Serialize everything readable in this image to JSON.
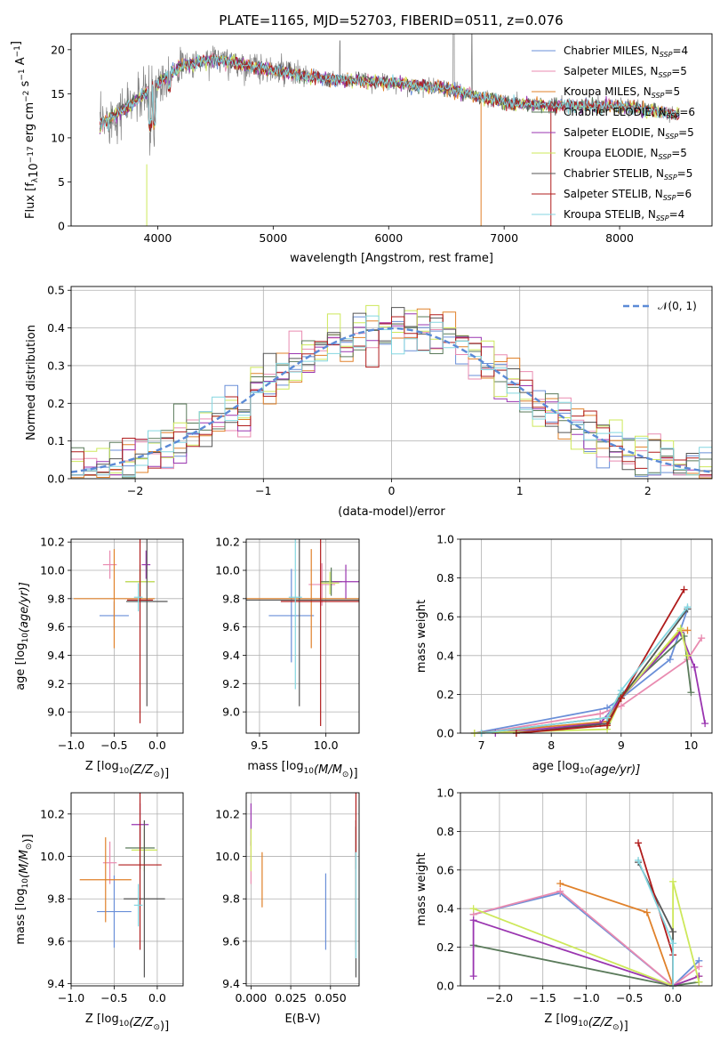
{
  "figure_title": "PLATE=1165, MJD=52703, FIBERID=0511, z=0.076",
  "colors": {
    "Chabrier MILES": "#6a8fd8",
    "Salpeter MILES": "#e98bb0",
    "Kroupa MILES": "#e0812a",
    "Chabrier ELODIE": "#5a7a5a",
    "Salpeter ELODIE": "#9a35b0",
    "Kroupa ELODIE": "#cde85a",
    "Chabrier STELIB": "#555555",
    "Salpeter STELIB": "#b01c1c",
    "Kroupa STELIB": "#84d6e0",
    "data": "#808080",
    "gaussian": "#5b8ad6",
    "grid": "#b0b0b0"
  },
  "chart_data": [
    {
      "id": "spectrum",
      "type": "line",
      "xlabel": "wavelength [Angstrom, rest frame]",
      "ylabel": "Flux [f",
      "ylabel_parts": {
        "pre": "Flux [f",
        "sub": "λ",
        "mid": "10",
        "sup1": "−17",
        "mid2": " erg cm",
        "sup2": "−2",
        "mid3": " s",
        "sup3": "−1",
        "end": " A",
        "sup4": "−1",
        "close": "]"
      },
      "xlim": [
        3250,
        8800
      ],
      "ylim": [
        0,
        21.8
      ],
      "xticks": [
        "4000",
        "5000",
        "6000",
        "7000",
        "8000"
      ],
      "yticks": [
        "0",
        "5",
        "10",
        "15",
        "20"
      ],
      "legend_position": "top-right",
      "legend": [
        {
          "name": "Chabrier MILES",
          "nssp": "4"
        },
        {
          "name": "Salpeter MILES",
          "nssp": "5"
        },
        {
          "name": "Kroupa MILES",
          "nssp": "5"
        },
        {
          "name": "Chabrier ELODIE",
          "nssp": "6"
        },
        {
          "name": "Salpeter ELODIE",
          "nssp": "5"
        },
        {
          "name": "Kroupa ELODIE",
          "nssp": "5"
        },
        {
          "name": "Chabrier STELIB",
          "nssp": "5"
        },
        {
          "name": "Salpeter STELIB",
          "nssp": "6"
        },
        {
          "name": "Kroupa STELIB",
          "nssp": "4"
        }
      ],
      "legend_label_suffix": ", N",
      "legend_sub": "SSP",
      "continuum": [
        [
          3500,
          11.5
        ],
        [
          3700,
          13.2
        ],
        [
          3900,
          15.0
        ],
        [
          4000,
          16.2
        ],
        [
          4200,
          18.2
        ],
        [
          4500,
          19.0
        ],
        [
          5000,
          17.6
        ],
        [
          5500,
          16.6
        ],
        [
          6000,
          16.3
        ],
        [
          6500,
          15.6
        ],
        [
          7000,
          14.0
        ],
        [
          7500,
          13.6
        ],
        [
          8000,
          13.6
        ],
        [
          8500,
          12.7
        ]
      ]
    },
    {
      "id": "residuals",
      "type": "histogram",
      "xlabel": "(data-model)/error",
      "ylabel": "Normed distribution",
      "xlim": [
        -2.5,
        2.5
      ],
      "ylim": [
        0,
        0.51
      ],
      "xticks": [
        "−2",
        "−1",
        "0",
        "1",
        "2"
      ],
      "yticks": [
        "0.0",
        "0.1",
        "0.2",
        "0.3",
        "0.4",
        "0.5"
      ],
      "legend_position": "top-right",
      "legend": "𝒩(0, 1)",
      "bin_width": 0.1
    },
    {
      "id": "age-vs-Z",
      "type": "scatter",
      "xlabel_pre": "Z [log",
      "xlabel_sub": "10",
      "xlabel_post": "(Z/Z",
      "xlabel_sun": "⊙",
      "xlabel_close": ")]",
      "ylabel_pre": "age  [log",
      "ylabel_sub": "10",
      "ylabel_post": "(age/yr)]",
      "xlim": [
        -1.0,
        0.3
      ],
      "ylim": [
        8.85,
        10.22
      ],
      "xticks": [
        "−1.0",
        "−0.5",
        "0.0"
      ],
      "yticks": [
        "9.0",
        "9.2",
        "9.4",
        "9.6",
        "9.8",
        "10.0",
        "10.2"
      ],
      "points": [
        {
          "series": "Chabrier MILES",
          "x": -0.5,
          "xerr": 0.17,
          "y": 9.68,
          "yerr": 0.1
        },
        {
          "series": "Salpeter MILES",
          "x": -0.55,
          "xerr": 0.08,
          "y": 10.04,
          "yerr": 0.1
        },
        {
          "series": "Kroupa MILES",
          "x": -0.5,
          "xerr": 0.47,
          "y": 9.8,
          "yerr": 0.35
        },
        {
          "series": "Chabrier ELODIE",
          "x": -0.2,
          "xerr": 0.17,
          "y": 9.92,
          "yerr": 0.12
        },
        {
          "series": "Salpeter ELODIE",
          "x": -0.13,
          "xerr": 0.05,
          "y": 10.04,
          "yerr": 0.1
        },
        {
          "series": "Kroupa ELODIE",
          "x": -0.2,
          "xerr": 0.17,
          "y": 9.92,
          "yerr": 0.1
        },
        {
          "series": "Chabrier STELIB",
          "x": -0.12,
          "xerr": 0.24,
          "y": 9.78,
          "yerr": 0.74
        },
        {
          "series": "Salpeter STELIB",
          "x": -0.2,
          "xerr": 0.15,
          "y": 9.79,
          "yerr": 0.87
        },
        {
          "series": "Kroupa STELIB",
          "x": -0.22,
          "xerr": 0.05,
          "y": 9.81,
          "yerr": 0.1
        }
      ]
    },
    {
      "id": "age-vs-mass",
      "type": "scatter",
      "xlabel_pre": "mass [log",
      "xlabel_sub": "10",
      "xlabel_post": "(M/M",
      "xlabel_sun": "⊙",
      "xlabel_close": ")]",
      "xlim": [
        9.4,
        10.25
      ],
      "ylim": [
        8.85,
        10.22
      ],
      "xticks": [
        "9.5",
        "10.0"
      ],
      "yticks": [
        "9.0",
        "9.2",
        "9.4",
        "9.6",
        "9.8",
        "10.0",
        "10.2"
      ],
      "points": [
        {
          "series": "Chabrier MILES",
          "x": 9.74,
          "xerr": 0.17,
          "y": 9.68,
          "yerr": 0.33
        },
        {
          "series": "Salpeter MILES",
          "x": 9.97,
          "xerr": 0.1,
          "y": 9.9,
          "yerr": 0.15
        },
        {
          "series": "Kroupa MILES",
          "x": 9.89,
          "xerr": 0.5,
          "y": 9.8,
          "yerr": 0.35
        },
        {
          "series": "Chabrier ELODIE",
          "x": 10.04,
          "xerr": 0.08,
          "y": 9.92,
          "yerr": 0.1
        },
        {
          "series": "Salpeter ELODIE",
          "x": 10.15,
          "xerr": 0.1,
          "y": 9.92,
          "yerr": 0.12
        },
        {
          "series": "Kroupa ELODIE",
          "x": 10.03,
          "xerr": 0.07,
          "y": 9.91,
          "yerr": 0.08
        },
        {
          "series": "Chabrier STELIB",
          "x": 9.8,
          "xerr": 0.5,
          "y": 9.79,
          "yerr": 0.75
        },
        {
          "series": "Salpeter STELIB",
          "x": 9.96,
          "xerr": 0.3,
          "y": 9.78,
          "yerr": 0.88
        },
        {
          "series": "Kroupa STELIB",
          "x": 9.77,
          "xerr": 0.05,
          "y": 9.81,
          "yerr": 0.65
        }
      ]
    },
    {
      "id": "mass-weight-vs-age",
      "type": "line",
      "xlabel_pre": "age  [log",
      "xlabel_sub": "10",
      "xlabel_post": "(age/yr)]",
      "ylabel": "mass weight",
      "xlim": [
        6.7,
        10.3
      ],
      "ylim": [
        0,
        1.0
      ],
      "xticks": [
        "7",
        "8",
        "9",
        "10"
      ],
      "yticks": [
        "0.0",
        "0.2",
        "0.4",
        "0.6",
        "0.8",
        "1.0"
      ],
      "series": [
        {
          "name": "Chabrier MILES",
          "points": [
            [
              6.9,
              0.0
            ],
            [
              8.8,
              0.13
            ],
            [
              9.0,
              0.18
            ],
            [
              9.7,
              0.38
            ],
            [
              9.95,
              0.64
            ]
          ]
        },
        {
          "name": "Salpeter MILES",
          "points": [
            [
              7.0,
              0.0
            ],
            [
              8.7,
              0.1
            ],
            [
              9.0,
              0.14
            ],
            [
              9.95,
              0.38
            ],
            [
              10.15,
              0.49
            ]
          ]
        },
        {
          "name": "Kroupa MILES",
          "points": [
            [
              6.9,
              0.0
            ],
            [
              8.8,
              0.06
            ],
            [
              9.0,
              0.18
            ],
            [
              9.85,
              0.53
            ],
            [
              9.95,
              0.53
            ]
          ]
        },
        {
          "name": "Chabrier ELODIE",
          "points": [
            [
              7.0,
              0.0
            ],
            [
              8.8,
              0.08
            ],
            [
              9.0,
              0.2
            ],
            [
              9.9,
              0.5
            ],
            [
              10.0,
              0.21
            ]
          ]
        },
        {
          "name": "Salpeter ELODIE",
          "points": [
            [
              7.2,
              0.0
            ],
            [
              8.7,
              0.05
            ],
            [
              9.0,
              0.18
            ],
            [
              9.85,
              0.52
            ],
            [
              10.05,
              0.34
            ],
            [
              10.2,
              0.05
            ]
          ]
        },
        {
          "name": "Kroupa ELODIE",
          "points": [
            [
              6.9,
              0.0
            ],
            [
              8.8,
              0.02
            ],
            [
              9.0,
              0.18
            ],
            [
              9.85,
              0.54
            ],
            [
              9.95,
              0.4
            ]
          ]
        },
        {
          "name": "Chabrier STELIB",
          "points": [
            [
              7.5,
              0.0
            ],
            [
              8.8,
              0.05
            ],
            [
              9.0,
              0.18
            ],
            [
              9.95,
              0.64
            ]
          ]
        },
        {
          "name": "Salpeter STELIB",
          "points": [
            [
              7.5,
              0.0
            ],
            [
              8.8,
              0.04
            ],
            [
              9.0,
              0.18
            ],
            [
              9.9,
              0.74
            ]
          ]
        },
        {
          "name": "Kroupa STELIB",
          "points": [
            [
              7.0,
              0.0
            ],
            [
              8.8,
              0.08
            ],
            [
              9.0,
              0.22
            ],
            [
              9.95,
              0.65
            ]
          ]
        }
      ]
    },
    {
      "id": "mass-vs-Z",
      "type": "scatter",
      "xlabel_pre": "Z [log",
      "xlabel_sub": "10",
      "xlabel_post": "(Z/Z",
      "xlabel_sun": "⊙",
      "xlabel_close": ")]",
      "ylabel_pre": "mass [log",
      "ylabel_sub": "10",
      "ylabel_post": "(M/M",
      "ylabel_sun": "⊙",
      "ylabel_close": ")]",
      "xlim": [
        -1.0,
        0.3
      ],
      "ylim": [
        9.39,
        10.3
      ],
      "xticks": [
        "−1.0",
        "−0.5",
        "0.0"
      ],
      "yticks": [
        "9.4",
        "9.6",
        "9.8",
        "10.0",
        "10.2"
      ],
      "points": [
        {
          "series": "Chabrier MILES",
          "x": -0.5,
          "xerr": 0.2,
          "y": 9.74,
          "yerr": 0.17
        },
        {
          "series": "Salpeter MILES",
          "x": -0.55,
          "xerr": 0.08,
          "y": 9.97,
          "yerr": 0.1
        },
        {
          "series": "Kroupa MILES",
          "x": -0.6,
          "xerr": 0.3,
          "y": 9.89,
          "yerr": 0.2
        },
        {
          "series": "Chabrier ELODIE",
          "x": -0.2,
          "xerr": 0.17,
          "y": 10.04,
          "yerr": 0.1
        },
        {
          "series": "Salpeter ELODIE",
          "x": -0.2,
          "xerr": 0.1,
          "y": 10.15,
          "yerr": 0.1
        },
        {
          "series": "Kroupa ELODIE",
          "x": -0.15,
          "xerr": 0.15,
          "y": 10.03,
          "yerr": 0.1
        },
        {
          "series": "Chabrier STELIB",
          "x": -0.15,
          "xerr": 0.24,
          "y": 9.8,
          "yerr": 0.37
        },
        {
          "series": "Salpeter STELIB",
          "x": -0.2,
          "xerr": 0.25,
          "y": 9.96,
          "yerr": 0.4
        },
        {
          "series": "Kroupa STELIB",
          "x": -0.22,
          "xerr": 0.05,
          "y": 9.77,
          "yerr": 0.1
        }
      ]
    },
    {
      "id": "mass-vs-EBV",
      "type": "scatter",
      "xlabel": "E(B-V)",
      "xlim": [
        -0.003,
        0.068
      ],
      "ylim": [
        9.39,
        10.3
      ],
      "xticks": [
        "0.000",
        "0.025",
        "0.050"
      ],
      "yticks": [
        "9.4",
        "9.6",
        "9.8",
        "10.0",
        "10.2"
      ],
      "points": [
        {
          "series": "Chabrier MILES",
          "x": 0.047,
          "y": 9.74,
          "yerr": 0.18
        },
        {
          "series": "Salpeter MILES",
          "x": 0.0,
          "y": 9.97,
          "yerr": 0.1
        },
        {
          "series": "Kroupa MILES",
          "x": 0.007,
          "y": 9.89,
          "yerr": 0.13
        },
        {
          "series": "Chabrier ELODIE",
          "x": 0.066,
          "y": 10.04,
          "yerr": 0.1
        },
        {
          "series": "Salpeter ELODIE",
          "x": 0.0,
          "y": 10.15,
          "yerr": 0.1
        },
        {
          "series": "Kroupa ELODIE",
          "x": 0.0,
          "y": 10.03,
          "yerr": 0.1
        },
        {
          "series": "Chabrier STELIB",
          "x": 0.066,
          "y": 9.8,
          "yerr": 0.37
        },
        {
          "series": "Salpeter STELIB",
          "x": 0.066,
          "y": 9.96,
          "yerr": 0.4
        },
        {
          "series": "Kroupa STELIB",
          "x": 0.066,
          "y": 9.77,
          "yerr": 0.25
        }
      ]
    },
    {
      "id": "mass-weight-vs-Z",
      "type": "line",
      "xlabel_pre": "Z [log",
      "xlabel_sub": "10",
      "xlabel_post": "(Z/Z",
      "xlabel_sun": "⊙",
      "xlabel_close": ")]",
      "ylabel": "mass weight",
      "xlim": [
        -2.45,
        0.45
      ],
      "ylim": [
        0,
        1.0
      ],
      "xticks": [
        "−2.0",
        "−1.5",
        "−1.0",
        "−0.5",
        "0.0"
      ],
      "yticks": [
        "0.0",
        "0.2",
        "0.4",
        "0.6",
        "0.8",
        "1.0"
      ],
      "series": [
        {
          "name": "Chabrier MILES",
          "points": [
            [
              -2.3,
              0.37
            ],
            [
              -1.3,
              0.48
            ],
            [
              0.0,
              0.0
            ],
            [
              0.3,
              0.13
            ]
          ]
        },
        {
          "name": "Salpeter MILES",
          "points": [
            [
              -2.3,
              0.37
            ],
            [
              -1.3,
              0.49
            ],
            [
              0.0,
              0.0
            ],
            [
              0.3,
              0.1
            ]
          ]
        },
        {
          "name": "Kroupa MILES",
          "points": [
            [
              -1.3,
              0.53
            ],
            [
              -0.3,
              0.38
            ],
            [
              0.0,
              0.0
            ],
            [
              0.3,
              0.05
            ]
          ]
        },
        {
          "name": "Chabrier ELODIE",
          "points": [
            [
              -2.3,
              0.21
            ],
            [
              0.0,
              0.0
            ],
            [
              0.3,
              0.02
            ]
          ]
        },
        {
          "name": "Salpeter ELODIE",
          "points": [
            [
              -2.3,
              0.05
            ],
            [
              -2.3,
              0.34
            ],
            [
              0.0,
              0.0
            ],
            [
              0.3,
              0.05
            ]
          ]
        },
        {
          "name": "Kroupa ELODIE",
          "points": [
            [
              -2.3,
              0.4
            ],
            [
              0.0,
              0.0
            ],
            [
              0.0,
              0.54
            ],
            [
              0.3,
              0.02
            ]
          ]
        },
        {
          "name": "Chabrier STELIB",
          "points": [
            [
              -0.4,
              0.64
            ],
            [
              0.0,
              0.28
            ],
            [
              0.0,
              0.0
            ]
          ]
        },
        {
          "name": "Salpeter STELIB",
          "points": [
            [
              -0.4,
              0.74
            ],
            [
              0.0,
              0.16
            ],
            [
              0.0,
              0.0
            ]
          ]
        },
        {
          "name": "Kroupa STELIB",
          "points": [
            [
              -0.4,
              0.65
            ],
            [
              0.0,
              0.22
            ],
            [
              0.0,
              0.0
            ]
          ]
        }
      ]
    }
  ]
}
